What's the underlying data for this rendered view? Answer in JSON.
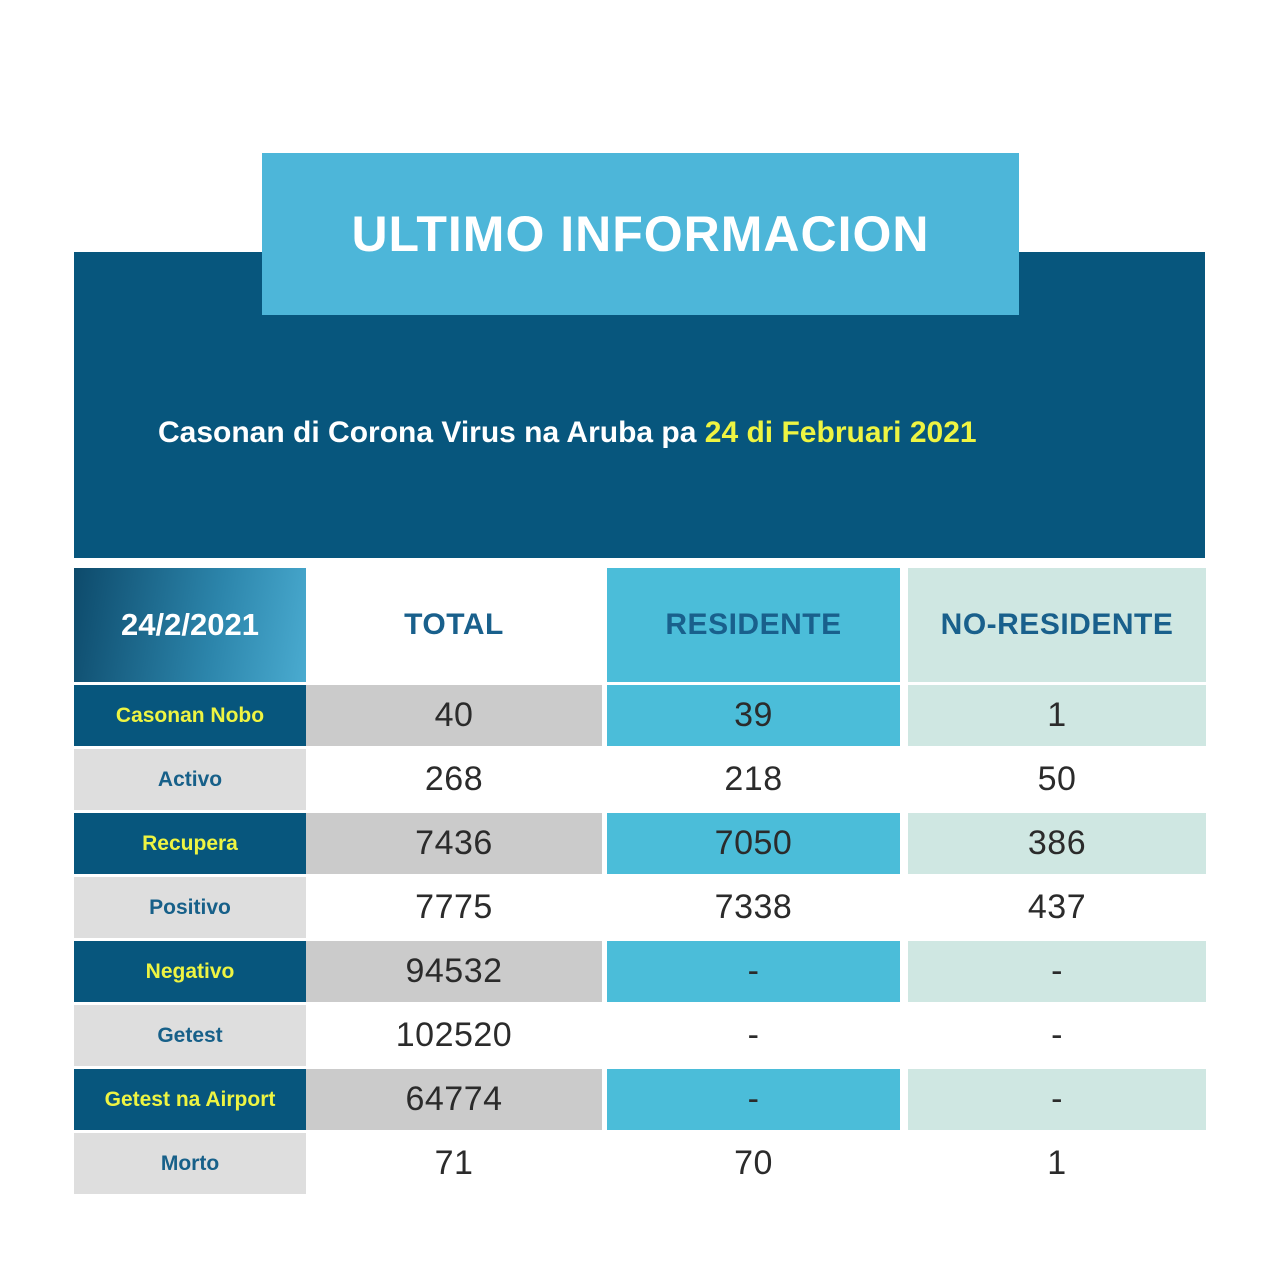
{
  "banner": {
    "title": "ULTIMO INFORMACION"
  },
  "subtitle": {
    "prefix": "Casonan di Corona Virus na Aruba pa ",
    "date_highlight": "24 di Februari 2021"
  },
  "table": {
    "header": {
      "date": "24/2/2021",
      "total": "TOTAL",
      "residente": "RESIDENTE",
      "no_residente": "NO-RESIDENTE"
    },
    "rows": [
      {
        "label": "Casonan Nobo",
        "total": "40",
        "residente": "39",
        "no_residente": "1"
      },
      {
        "label": "Activo",
        "total": "268",
        "residente": "218",
        "no_residente": "50"
      },
      {
        "label": "Recupera",
        "total": "7436",
        "residente": "7050",
        "no_residente": "386"
      },
      {
        "label": "Positivo",
        "total": "7775",
        "residente": "7338",
        "no_residente": "437"
      },
      {
        "label": "Negativo",
        "total": "94532",
        "residente": "-",
        "no_residente": "-"
      },
      {
        "label": "Getest",
        "total": "102520",
        "residente": "-",
        "no_residente": "-"
      },
      {
        "label": "Getest na Airport",
        "total": "64774",
        "residente": "-",
        "no_residente": "-"
      },
      {
        "label": "Morto",
        "total": "71",
        "residente": "70",
        "no_residente": "1"
      }
    ]
  },
  "colors": {
    "banner_light_blue": "#4db6d9",
    "banner_dark_blue": "#07567d",
    "highlight_yellow": "#eef442",
    "header_text_blue": "#19608c",
    "cell_gray": "#cbcbcb",
    "cell_light_gray": "#dedede",
    "cell_blue": "#4bbdd9",
    "cell_pale_teal": "#cfe7e2",
    "value_text": "#2b2b2b",
    "date_cell_gradient_start": "#0d4a6b",
    "date_cell_gradient_end": "#4aabd0"
  },
  "chart_data": {
    "type": "table",
    "title": "ULTIMO INFORMACION",
    "subtitle": "Casonan di Corona Virus na Aruba pa 24 di Februari 2021",
    "date": "24/2/2021",
    "columns": [
      "24/2/2021",
      "TOTAL",
      "RESIDENTE",
      "NO-RESIDENTE"
    ],
    "rows": [
      {
        "category": "Casonan Nobo",
        "total": 40,
        "residente": 39,
        "no_residente": 1
      },
      {
        "category": "Activo",
        "total": 268,
        "residente": 218,
        "no_residente": 50
      },
      {
        "category": "Recupera",
        "total": 7436,
        "residente": 7050,
        "no_residente": 386
      },
      {
        "category": "Positivo",
        "total": 7775,
        "residente": 7338,
        "no_residente": 437
      },
      {
        "category": "Negativo",
        "total": 94532,
        "residente": null,
        "no_residente": null
      },
      {
        "category": "Getest",
        "total": 102520,
        "residente": null,
        "no_residente": null
      },
      {
        "category": "Getest na Airport",
        "total": 64774,
        "residente": null,
        "no_residente": null
      },
      {
        "category": "Morto",
        "total": 71,
        "residente": 70,
        "no_residente": 1
      }
    ]
  }
}
